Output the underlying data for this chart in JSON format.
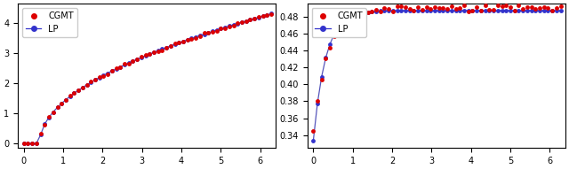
{
  "cgmt_color": "#dd0000",
  "lp_color": "#3333cc",
  "lp_line_color": "#5555bb",
  "marker_size_cgmt": 3.5,
  "marker_size_lp": 3.5,
  "legend_labels": [
    "CGMT",
    "LP"
  ],
  "left_ylim": [
    -0.15,
    4.65
  ],
  "right_ylim": [
    0.325,
    0.495
  ],
  "left_yticks": [
    0,
    1,
    2,
    3,
    4
  ],
  "right_yticks": [
    0.34,
    0.36,
    0.38,
    0.4,
    0.42,
    0.44,
    0.46,
    0.48
  ],
  "xticks": [
    0,
    1,
    2,
    3,
    4,
    5,
    6
  ],
  "figsize": [
    6.4,
    1.91
  ],
  "dpi": 100,
  "left_xlim": [
    -0.15,
    6.4
  ],
  "right_xlim": [
    -0.15,
    6.4
  ]
}
